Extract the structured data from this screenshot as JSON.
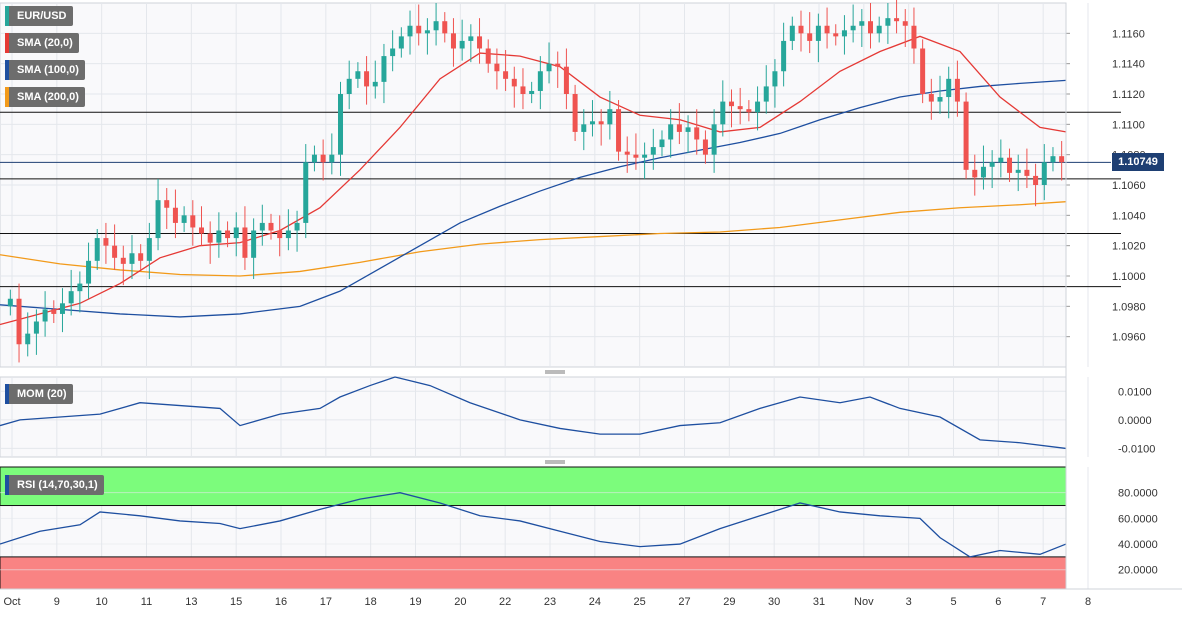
{
  "chart_data": {
    "type": "candlestick",
    "symbol": "EUR/USD",
    "current_price": "1.10749",
    "price_axis": {
      "ylim": [
        1.094,
        1.118
      ],
      "ticks": [
        "1.1160",
        "1.1140",
        "1.1120",
        "1.1100",
        "1.1080",
        "1.1060",
        "1.1040",
        "1.1020",
        "1.1000",
        "1.0980",
        "1.0960"
      ]
    },
    "x_axis": {
      "labels": [
        "Oct",
        "9",
        "10",
        "11",
        "13",
        "15",
        "16",
        "17",
        "18",
        "19",
        "20",
        "22",
        "23",
        "24",
        "25",
        "27",
        "29",
        "30",
        "31",
        "Nov",
        "3",
        "5",
        "6",
        "7",
        "8"
      ]
    },
    "indicators": [
      {
        "name": "SMA (20,0)",
        "color": "#e53935"
      },
      {
        "name": "SMA (100,0)",
        "color": "#1e4fa0"
      },
      {
        "name": "SMA (200,0)",
        "color": "#f29a1a"
      }
    ],
    "horizontal_levels": [
      1.1108,
      1.1064,
      1.1028,
      1.0993
    ],
    "candles_close": [
      1.0985,
      1.0955,
      1.0962,
      1.097,
      1.0978,
      1.0975,
      1.0982,
      1.099,
      1.0995,
      1.101,
      1.1025,
      1.102,
      1.1012,
      1.1008,
      1.1015,
      1.101,
      1.1025,
      1.105,
      1.1045,
      1.1035,
      1.104,
      1.1032,
      1.1028,
      1.1022,
      1.103,
      1.1025,
      1.1032,
      1.1012,
      1.103,
      1.1035,
      1.103,
      1.1025,
      1.103,
      1.1035,
      1.1075,
      1.108,
      1.1075,
      1.108,
      1.112,
      1.113,
      1.1135,
      1.1125,
      1.1128,
      1.1145,
      1.115,
      1.1158,
      1.1165,
      1.116,
      1.1162,
      1.1168,
      1.116,
      1.115,
      1.1155,
      1.1158,
      1.115,
      1.114,
      1.1135,
      1.113,
      1.1125,
      1.112,
      1.1122,
      1.1135,
      1.114,
      1.1138,
      1.112,
      1.1095,
      1.11,
      1.1102,
      1.11,
      1.111,
      1.1082,
      1.108,
      1.1078,
      1.108,
      1.1085,
      1.109,
      1.11,
      1.1095,
      1.1098,
      1.109,
      1.108,
      1.11,
      1.1115,
      1.1112,
      1.111,
      1.1108,
      1.1115,
      1.1125,
      1.1135,
      1.1155,
      1.1165,
      1.116,
      1.1155,
      1.1165,
      1.116,
      1.1158,
      1.1162,
      1.1165,
      1.1168,
      1.116,
      1.1165,
      1.117,
      1.1168,
      1.1165,
      1.115,
      1.112,
      1.1115,
      1.1118,
      1.113,
      1.1115,
      1.107,
      1.1065,
      1.1072,
      1.1075,
      1.1078,
      1.1068,
      1.107,
      1.1066,
      1.106,
      1.1075,
      1.1079,
      1.1075
    ],
    "sma20": [
      [
        0,
        1.0968
      ],
      [
        40,
        1.0975
      ],
      [
        80,
        1.0982
      ],
      [
        120,
        1.0995
      ],
      [
        160,
        1.1012
      ],
      [
        200,
        1.102
      ],
      [
        240,
        1.1022
      ],
      [
        280,
        1.103
      ],
      [
        320,
        1.1045
      ],
      [
        360,
        1.107
      ],
      [
        400,
        1.1098
      ],
      [
        440,
        1.113
      ],
      [
        480,
        1.1147
      ],
      [
        520,
        1.1145
      ],
      [
        560,
        1.1138
      ],
      [
        600,
        1.1118
      ],
      [
        640,
        1.1106
      ],
      [
        680,
        1.1103
      ],
      [
        720,
        1.1095
      ],
      [
        760,
        1.1098
      ],
      [
        800,
        1.1115
      ],
      [
        840,
        1.1135
      ],
      [
        880,
        1.1148
      ],
      [
        920,
        1.1158
      ],
      [
        960,
        1.1148
      ],
      [
        1000,
        1.1118
      ],
      [
        1040,
        1.1098
      ],
      [
        1066,
        1.1095
      ]
    ],
    "sma100": [
      [
        0,
        1.0981
      ],
      [
        60,
        1.0978
      ],
      [
        120,
        1.0975
      ],
      [
        180,
        1.0973
      ],
      [
        240,
        1.0975
      ],
      [
        300,
        1.098
      ],
      [
        340,
        1.099
      ],
      [
        380,
        1.1005
      ],
      [
        420,
        1.102
      ],
      [
        460,
        1.1035
      ],
      [
        500,
        1.1046
      ],
      [
        540,
        1.1056
      ],
      [
        580,
        1.1065
      ],
      [
        620,
        1.1072
      ],
      [
        660,
        1.1078
      ],
      [
        700,
        1.1083
      ],
      [
        740,
        1.1088
      ],
      [
        780,
        1.1094
      ],
      [
        820,
        1.1103
      ],
      [
        860,
        1.1111
      ],
      [
        900,
        1.1118
      ],
      [
        940,
        1.1122
      ],
      [
        980,
        1.1125
      ],
      [
        1020,
        1.1127
      ],
      [
        1066,
        1.1129
      ]
    ],
    "sma200": [
      [
        0,
        1.1014
      ],
      [
        60,
        1.1008
      ],
      [
        120,
        1.1004
      ],
      [
        180,
        1.1001
      ],
      [
        240,
        1.1
      ],
      [
        300,
        1.1003
      ],
      [
        360,
        1.1009
      ],
      [
        420,
        1.1016
      ],
      [
        480,
        1.1021
      ],
      [
        540,
        1.1024
      ],
      [
        600,
        1.1026
      ],
      [
        660,
        1.1028
      ],
      [
        720,
        1.1029
      ],
      [
        780,
        1.1032
      ],
      [
        840,
        1.1037
      ],
      [
        900,
        1.1042
      ],
      [
        960,
        1.1045
      ],
      [
        1020,
        1.1047
      ],
      [
        1066,
        1.1049
      ]
    ],
    "momentum": {
      "label": "MOM (20)",
      "ylim": [
        -0.013,
        0.015
      ],
      "ticks": [
        "0.0100",
        "0.0000",
        "-0.0100"
      ],
      "values": [
        [
          0,
          -0.002
        ],
        [
          20,
          0.0
        ],
        [
          60,
          0.001
        ],
        [
          100,
          0.002
        ],
        [
          140,
          0.006
        ],
        [
          180,
          0.005
        ],
        [
          220,
          0.004
        ],
        [
          240,
          -0.002
        ],
        [
          280,
          0.002
        ],
        [
          320,
          0.004
        ],
        [
          340,
          0.008
        ],
        [
          370,
          0.012
        ],
        [
          395,
          0.015
        ],
        [
          430,
          0.012
        ],
        [
          470,
          0.006
        ],
        [
          520,
          0.0
        ],
        [
          560,
          -0.003
        ],
        [
          600,
          -0.005
        ],
        [
          640,
          -0.005
        ],
        [
          680,
          -0.002
        ],
        [
          720,
          -0.001
        ],
        [
          760,
          0.004
        ],
        [
          800,
          0.008
        ],
        [
          840,
          0.006
        ],
        [
          870,
          0.008
        ],
        [
          900,
          0.004
        ],
        [
          940,
          0.001
        ],
        [
          980,
          -0.007
        ],
        [
          1020,
          -0.008
        ],
        [
          1066,
          -0.01
        ]
      ]
    },
    "rsi": {
      "label": "RSI (14,70,30,1)",
      "ylim": [
        5,
        100
      ],
      "ticks": [
        "80.0000",
        "60.0000",
        "40.0000",
        "20.0000"
      ],
      "overbought": 70,
      "oversold": 30,
      "values": [
        [
          0,
          40
        ],
        [
          40,
          50
        ],
        [
          80,
          55
        ],
        [
          100,
          65
        ],
        [
          140,
          62
        ],
        [
          180,
          58
        ],
        [
          220,
          56
        ],
        [
          240,
          52
        ],
        [
          280,
          58
        ],
        [
          320,
          67
        ],
        [
          360,
          75
        ],
        [
          400,
          80
        ],
        [
          440,
          72
        ],
        [
          480,
          62
        ],
        [
          520,
          58
        ],
        [
          560,
          50
        ],
        [
          600,
          42
        ],
        [
          640,
          38
        ],
        [
          680,
          40
        ],
        [
          720,
          52
        ],
        [
          760,
          62
        ],
        [
          800,
          72
        ],
        [
          840,
          65
        ],
        [
          880,
          62
        ],
        [
          920,
          60
        ],
        [
          940,
          45
        ],
        [
          970,
          30
        ],
        [
          1000,
          35
        ],
        [
          1040,
          32
        ],
        [
          1066,
          40
        ]
      ]
    },
    "legend_colors": {
      "up": "#26a69a",
      "down": "#ef5350"
    }
  },
  "labels": {
    "symbol_tag": "EUR/USD",
    "sma20_tag": "SMA (20,0)",
    "sma100_tag": "SMA (100,0)",
    "sma200_tag": "SMA (200,0)",
    "mom_tag": "MOM (20)",
    "rsi_tag": "RSI (14,70,30,1)",
    "price_badge": "1.10749"
  }
}
